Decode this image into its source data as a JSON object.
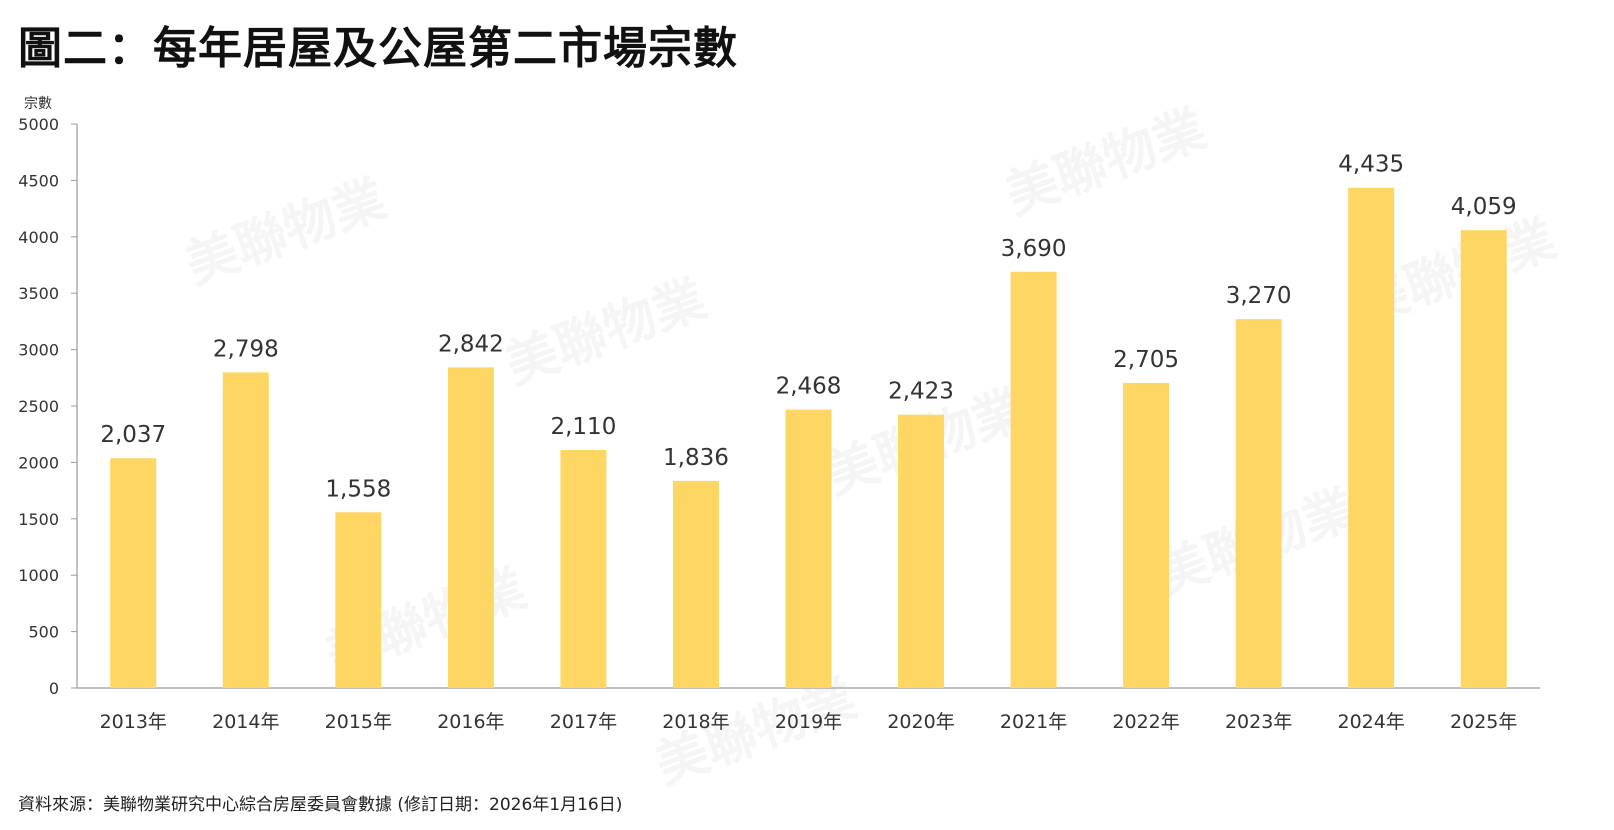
{
  "header": {
    "title": "圖二：每年居屋及公屋第二市場宗數"
  },
  "footer": {
    "source": "資料來源：美聯物業研究中心綜合房屋委員會數據 (修訂日期：2026年1月16日)"
  },
  "watermark": {
    "text": "美聯物業"
  },
  "colors": {
    "bar": "#FDD664",
    "axis": "#999999"
  },
  "chart_data": {
    "type": "bar",
    "title": "圖二：每年居屋及公屋第二市場宗數",
    "ylabel": "宗數",
    "xlabel": "",
    "ylim": [
      0,
      5000
    ],
    "yticks": [
      0,
      500,
      1000,
      1500,
      2000,
      2500,
      3000,
      3500,
      4000,
      4500,
      5000
    ],
    "grid": false,
    "categories": [
      "2013年",
      "2014年",
      "2015年",
      "2016年",
      "2017年",
      "2018年",
      "2019年",
      "2020年",
      "2021年",
      "2022年",
      "2023年",
      "2024年",
      "2025年"
    ],
    "values": [
      2037,
      2798,
      1558,
      2842,
      2110,
      1836,
      2468,
      2423,
      3690,
      2705,
      3270,
      4435,
      4059
    ],
    "data_labels": [
      "2,037",
      "2,798",
      "1,558",
      "2,842",
      "2,110",
      "1,836",
      "2,468",
      "2,423",
      "3,690",
      "2,705",
      "3,270",
      "4,435",
      "4,059"
    ]
  }
}
